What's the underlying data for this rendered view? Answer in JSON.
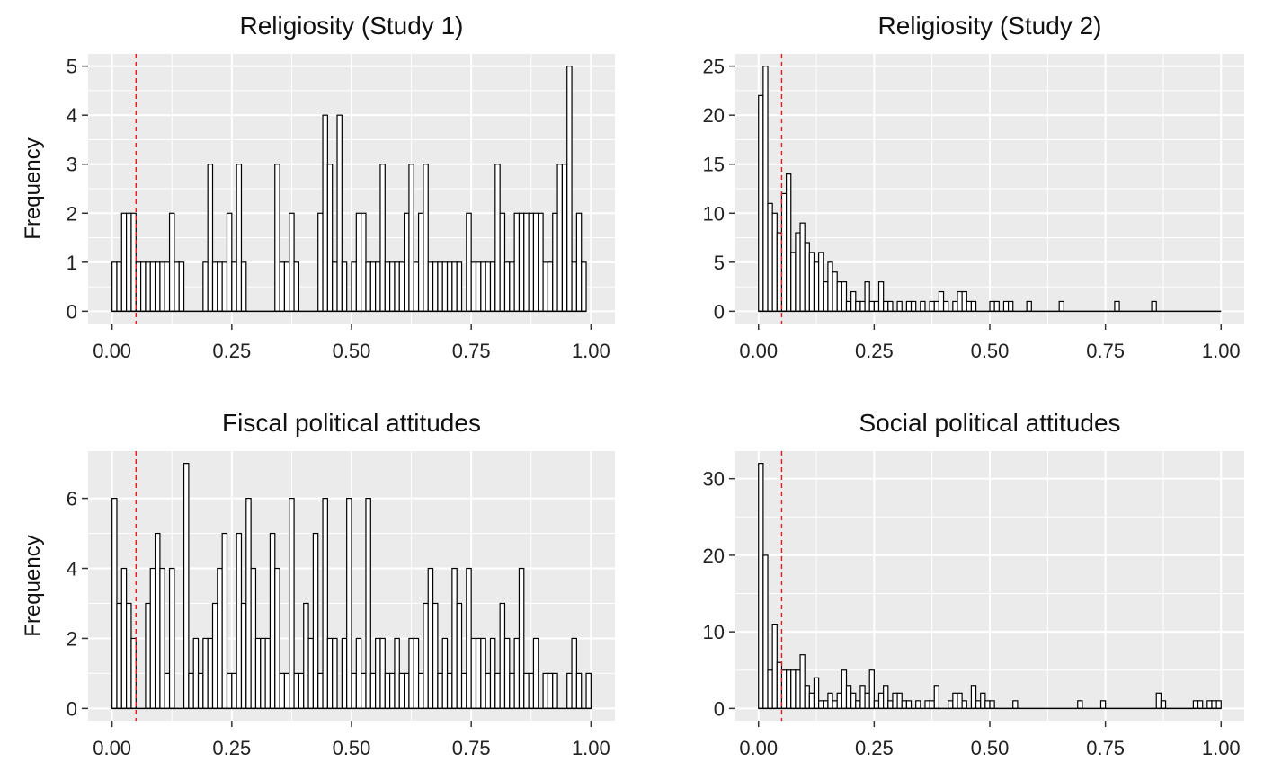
{
  "chart_data": [
    {
      "type": "bar",
      "title": "Religiosity (Study 1)",
      "xlabel": "",
      "ylabel": "Frequency",
      "xlim": [
        -0.05,
        1.05
      ],
      "ylim": [
        -0.25,
        5.25
      ],
      "x_ticks": [
        "0.00",
        "0.25",
        "0.50",
        "0.75",
        "1.00"
      ],
      "y_ticks": [
        "0",
        "1",
        "2",
        "3",
        "4",
        "5"
      ],
      "bin_width": 0.01,
      "bin_start": 0.0,
      "reference_line": 0.05,
      "values": [
        1,
        1,
        2,
        2,
        2,
        1,
        1,
        1,
        1,
        1,
        1,
        1,
        2,
        1,
        1,
        0,
        0,
        0,
        0,
        1,
        3,
        1,
        1,
        1,
        2,
        1,
        3,
        1,
        0,
        0,
        0,
        0,
        0,
        0,
        3,
        1,
        1,
        2,
        1,
        0,
        0,
        0,
        0,
        2,
        4,
        3,
        1,
        4,
        1,
        0,
        1,
        2,
        2,
        1,
        1,
        1,
        3,
        1,
        1,
        1,
        1,
        2,
        3,
        1,
        2,
        3,
        1,
        1,
        1,
        1,
        1,
        1,
        1,
        0,
        2,
        1,
        1,
        1,
        1,
        1,
        3,
        2,
        1,
        1,
        2,
        2,
        2,
        2,
        2,
        2,
        1,
        1,
        2,
        3,
        3,
        5,
        1,
        2,
        1
      ]
    },
    {
      "type": "bar",
      "title": "Religiosity (Study 2)",
      "xlabel": "",
      "ylabel": "",
      "xlim": [
        -0.05,
        1.05
      ],
      "ylim": [
        -1.25,
        26.25
      ],
      "x_ticks": [
        "0.00",
        "0.25",
        "0.50",
        "0.75",
        "1.00"
      ],
      "y_ticks": [
        "0",
        "5",
        "10",
        "15",
        "20",
        "25"
      ],
      "bin_width": 0.01,
      "bin_start": 0.0,
      "reference_line": 0.05,
      "values": [
        22,
        25,
        11,
        10,
        8,
        12,
        14,
        6,
        8,
        9,
        7,
        6,
        5,
        6,
        3,
        5,
        4,
        3,
        3,
        1,
        2,
        1,
        1,
        3,
        1,
        1,
        3,
        1,
        1,
        0,
        1,
        0,
        1,
        1,
        0,
        1,
        0,
        1,
        1,
        2,
        1,
        0,
        1,
        2,
        2,
        1,
        1,
        0,
        0,
        0,
        1,
        1,
        0,
        1,
        1,
        0,
        0,
        0,
        1,
        0,
        0,
        0,
        0,
        0,
        0,
        1,
        0,
        0,
        0,
        0,
        0,
        0,
        0,
        0,
        0,
        0,
        0,
        1,
        0,
        0,
        0,
        0,
        0,
        0,
        0,
        1,
        0,
        0,
        0,
        0,
        0,
        0,
        0,
        0,
        0,
        0,
        0,
        0,
        0,
        0
      ]
    },
    {
      "type": "bar",
      "title": "Fiscal political attitudes",
      "xlabel": "",
      "ylabel": "Frequency",
      "xlim": [
        -0.05,
        1.05
      ],
      "ylim": [
        -0.35,
        7.35
      ],
      "x_ticks": [
        "0.00",
        "0.25",
        "0.50",
        "0.75",
        "1.00"
      ],
      "y_ticks": [
        "0",
        "2",
        "4",
        "6"
      ],
      "bin_width": 0.01,
      "bin_start": 0.0,
      "reference_line": 0.05,
      "values": [
        6,
        3,
        4,
        3,
        2,
        0,
        0,
        3,
        4,
        5,
        4,
        1,
        4,
        0,
        0,
        7,
        1,
        2,
        1,
        2,
        2,
        3,
        4,
        5,
        1,
        1,
        5,
        3,
        6,
        4,
        2,
        2,
        2,
        5,
        4,
        1,
        1,
        6,
        1,
        1,
        3,
        2,
        5,
        1,
        6,
        2,
        2,
        0,
        2,
        6,
        1,
        2,
        1,
        6,
        1,
        2,
        2,
        1,
        1,
        2,
        1,
        1,
        2,
        2,
        1,
        3,
        4,
        3,
        1,
        2,
        1,
        4,
        3,
        1,
        4,
        2,
        2,
        2,
        1,
        2,
        1,
        3,
        2,
        1,
        2,
        4,
        1,
        1,
        2,
        0,
        1,
        1,
        1,
        0,
        0,
        1,
        2,
        1,
        0,
        1
      ]
    },
    {
      "type": "bar",
      "title": "Social political attitudes",
      "xlabel": "",
      "ylabel": "",
      "xlim": [
        -0.05,
        1.05
      ],
      "ylim": [
        -1.6,
        33.6
      ],
      "x_ticks": [
        "0.00",
        "0.25",
        "0.50",
        "0.75",
        "1.00"
      ],
      "y_ticks": [
        "0",
        "10",
        "20",
        "30"
      ],
      "bin_width": 0.01,
      "bin_start": 0.0,
      "reference_line": 0.05,
      "values": [
        32,
        20,
        5,
        11,
        6,
        5,
        5,
        5,
        5,
        7,
        3,
        2,
        4,
        1,
        1,
        2,
        1,
        2,
        5,
        3,
        2,
        1,
        3,
        2,
        5,
        1,
        2,
        3,
        1,
        2,
        2,
        1,
        1,
        0,
        1,
        0,
        1,
        1,
        3,
        0,
        0,
        1,
        2,
        2,
        1,
        0,
        3,
        1,
        2,
        1,
        1,
        0,
        0,
        0,
        0,
        1,
        0,
        0,
        0,
        0,
        0,
        0,
        0,
        0,
        0,
        0,
        0,
        0,
        0,
        1,
        0,
        0,
        0,
        0,
        1,
        0,
        0,
        0,
        0,
        0,
        0,
        0,
        0,
        0,
        0,
        0,
        2,
        1,
        0,
        0,
        0,
        0,
        0,
        0,
        1,
        1,
        0,
        1,
        1,
        1
      ]
    }
  ]
}
